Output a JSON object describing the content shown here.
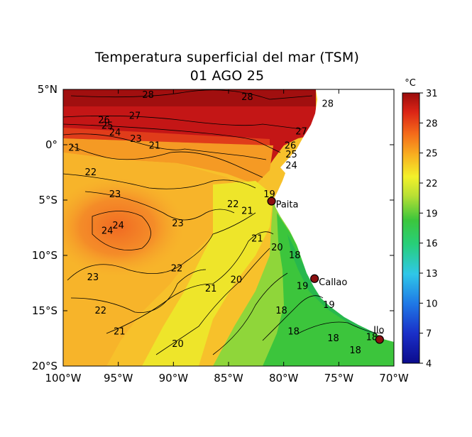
{
  "title": "Temperatura superficial del mar (TSM)",
  "date": "01 AGO 25",
  "colorbar": {
    "unit": "°C",
    "min": 4,
    "max": 31,
    "ticks": [
      "31",
      "28",
      "25",
      "22",
      "19",
      "16",
      "13",
      "10",
      "7",
      "4"
    ]
  },
  "axes": {
    "lon_range": [
      -100,
      -70
    ],
    "lat_range": [
      -20,
      5
    ],
    "x_ticks": [
      {
        "lon": -100,
        "label": "100°W"
      },
      {
        "lon": -95,
        "label": "95°W"
      },
      {
        "lon": -90,
        "label": "90°W"
      },
      {
        "lon": -85,
        "label": "85°W"
      },
      {
        "lon": -80,
        "label": "80°W"
      },
      {
        "lon": -75,
        "label": "75°W"
      },
      {
        "lon": -70,
        "label": "70°W"
      }
    ],
    "y_ticks": [
      {
        "lat": 5,
        "label": "5°N"
      },
      {
        "lat": 0,
        "label": "0°"
      },
      {
        "lat": -5,
        "label": "5°S"
      },
      {
        "lat": -10,
        "label": "10°S"
      },
      {
        "lat": -15,
        "label": "15°S"
      },
      {
        "lat": -20,
        "label": "20°S"
      }
    ]
  },
  "cities": [
    {
      "name": "Paita",
      "lon": -81.1,
      "lat": -5.1
    },
    {
      "name": "Callao",
      "lon": -77.2,
      "lat": -12.1
    },
    {
      "name": "Ilo",
      "lon": -71.3,
      "lat": -17.6
    }
  ],
  "contour_labels": [
    {
      "text": "28",
      "lon": -92.3,
      "lat": 4.5
    },
    {
      "text": "28",
      "lon": -83.3,
      "lat": 4.3
    },
    {
      "text": "28",
      "lon": -76.0,
      "lat": 3.7
    },
    {
      "text": "27",
      "lon": -93.5,
      "lat": 2.6
    },
    {
      "text": "27",
      "lon": -78.4,
      "lat": 1.2
    },
    {
      "text": "26",
      "lon": -96.3,
      "lat": 2.2
    },
    {
      "text": "25",
      "lon": -96.0,
      "lat": 1.7
    },
    {
      "text": "24",
      "lon": -95.3,
      "lat": 1.1
    },
    {
      "text": "23",
      "lon": -93.4,
      "lat": 0.5
    },
    {
      "text": "21",
      "lon": -99.0,
      "lat": -0.3
    },
    {
      "text": "21",
      "lon": -91.7,
      "lat": -0.1
    },
    {
      "text": "26",
      "lon": -79.4,
      "lat": -0.1
    },
    {
      "text": "25",
      "lon": -79.3,
      "lat": -0.9
    },
    {
      "text": "24",
      "lon": -79.3,
      "lat": -1.9
    },
    {
      "text": "22",
      "lon": -97.5,
      "lat": -2.5
    },
    {
      "text": "23",
      "lon": -95.3,
      "lat": -4.5
    },
    {
      "text": "22",
      "lon": -84.6,
      "lat": -5.4
    },
    {
      "text": "21",
      "lon": -83.3,
      "lat": -6.0
    },
    {
      "text": "19",
      "lon": -81.3,
      "lat": -4.5
    },
    {
      "text": "24",
      "lon": -96.0,
      "lat": -7.8
    },
    {
      "text": "24",
      "lon": -95.0,
      "lat": -7.3
    },
    {
      "text": "23",
      "lon": -89.6,
      "lat": -7.1
    },
    {
      "text": "21",
      "lon": -82.4,
      "lat": -8.5
    },
    {
      "text": "20",
      "lon": -80.6,
      "lat": -9.3
    },
    {
      "text": "18",
      "lon": -79.0,
      "lat": -10.0
    },
    {
      "text": "23",
      "lon": -97.3,
      "lat": -12.0
    },
    {
      "text": "22",
      "lon": -89.7,
      "lat": -11.2
    },
    {
      "text": "21",
      "lon": -86.6,
      "lat": -13.0
    },
    {
      "text": "20",
      "lon": -84.3,
      "lat": -12.2
    },
    {
      "text": "19",
      "lon": -78.3,
      "lat": -12.8
    },
    {
      "text": "22",
      "lon": -96.6,
      "lat": -15.0
    },
    {
      "text": "18",
      "lon": -80.2,
      "lat": -15.0
    },
    {
      "text": "19",
      "lon": -75.9,
      "lat": -14.5
    },
    {
      "text": "21",
      "lon": -94.9,
      "lat": -16.9
    },
    {
      "text": "18",
      "lon": -79.1,
      "lat": -16.9
    },
    {
      "text": "18",
      "lon": -75.5,
      "lat": -17.5
    },
    {
      "text": "18",
      "lon": -72.0,
      "lat": -17.4
    },
    {
      "text": "20",
      "lon": -89.6,
      "lat": -18.0
    },
    {
      "text": "18",
      "lon": -73.5,
      "lat": -18.6
    }
  ]
}
